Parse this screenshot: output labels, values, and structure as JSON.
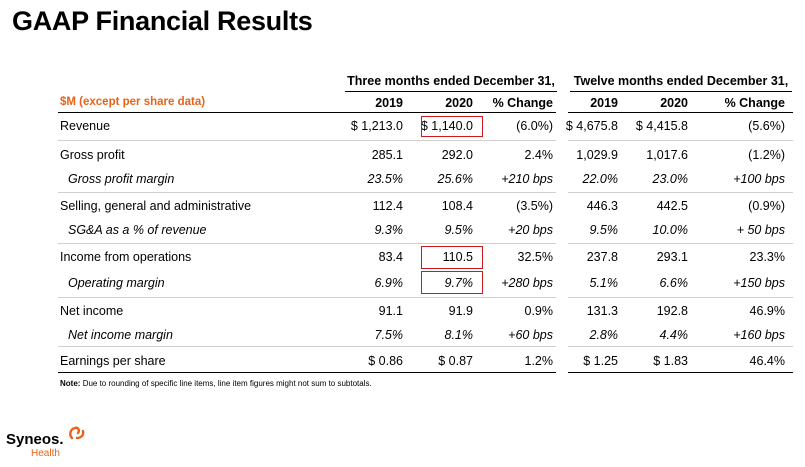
{
  "title": "GAAP Financial Results",
  "colors": {
    "accent": "#e8621a",
    "highlight": "#d0191f"
  },
  "table": {
    "unit_label": "$M (except per share data)",
    "groups": [
      "Three months ended December 31,",
      "Twelve months ended December 31,"
    ],
    "col_headers": [
      "2019",
      "2020",
      "% Change",
      "2019",
      "2020",
      "% Change"
    ],
    "rows": [
      {
        "label": "Revenue",
        "values": [
          "$ 1,213.0",
          "$ 1,140.0",
          "(6.0%)",
          "$ 4,675.8",
          "$ 4,415.8",
          "(5.6%)"
        ]
      },
      {
        "label": "Gross profit",
        "values": [
          "285.1",
          "292.0",
          "2.4%",
          "1,029.9",
          "1,017.6",
          "(1.2%)"
        ]
      },
      {
        "label": "Gross profit margin",
        "values": [
          "23.5%",
          "25.6%",
          "+210 bps",
          "22.0%",
          "23.0%",
          "+100 bps"
        ]
      },
      {
        "label": "Selling, general and administrative",
        "values": [
          "112.4",
          "108.4",
          "(3.5%)",
          "446.3",
          "442.5",
          "(0.9%)"
        ]
      },
      {
        "label": "SG&A as a % of revenue",
        "values": [
          "9.3%",
          "9.5%",
          "+20 bps",
          "9.5%",
          "10.0%",
          "+ 50 bps"
        ]
      },
      {
        "label": "Income from operations",
        "values": [
          "83.4",
          "110.5",
          "32.5%",
          "237.8",
          "293.1",
          "23.3%"
        ]
      },
      {
        "label": "Operating margin",
        "values": [
          "6.9%",
          "9.7%",
          "+280 bps",
          "5.1%",
          "6.6%",
          "+150 bps"
        ]
      },
      {
        "label": "Net income",
        "values": [
          "91.1",
          "91.9",
          "0.9%",
          "131.3",
          "192.8",
          "46.9%"
        ]
      },
      {
        "label": "Net income margin",
        "values": [
          "7.5%",
          "8.1%",
          "+60 bps",
          "2.8%",
          "4.4%",
          "+160 bps"
        ]
      },
      {
        "label": "Earnings per share",
        "values": [
          "$ 0.86",
          "$ 0.87",
          "1.2%",
          "$ 1.25",
          "$ 1.83",
          "46.4%"
        ]
      }
    ]
  },
  "note": {
    "prefix": "Note:",
    "text": "Due to rounding of specific line items, line item figures might not sum to subtotals."
  },
  "logo": {
    "name": "Syneos.",
    "sub": "Health"
  }
}
